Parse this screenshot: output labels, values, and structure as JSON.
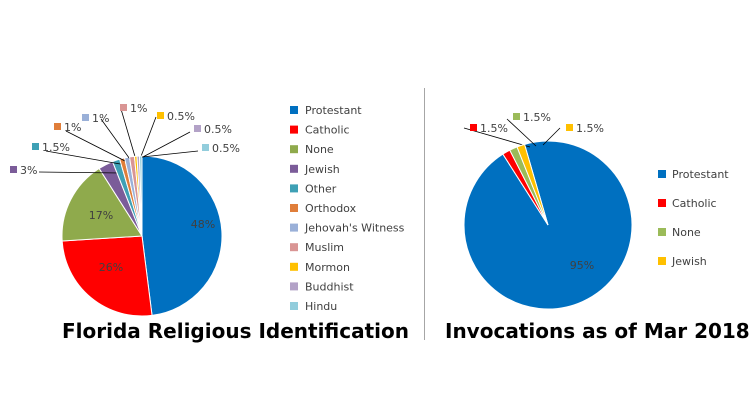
{
  "chart_data": [
    {
      "type": "pie",
      "title": "Florida Religious Identification",
      "legend_position": "right",
      "slices": [
        {
          "name": "Protestant",
          "value": 48,
          "label": "48%",
          "color": "#0070C0"
        },
        {
          "name": "Catholic",
          "value": 26,
          "label": "26%",
          "color": "#FF0000"
        },
        {
          "name": "None",
          "value": 17,
          "label": "17%",
          "color": "#8FAA4C"
        },
        {
          "name": "Jewish",
          "value": 3,
          "label": "3%",
          "color": "#7B5C99"
        },
        {
          "name": "Other",
          "value": 1.5,
          "label": "1.5%",
          "color": "#3EA0B5"
        },
        {
          "name": "Orthodox",
          "value": 1,
          "label": "1%",
          "color": "#E07E3A"
        },
        {
          "name": "Jehovah's Witness",
          "value": 1,
          "label": "1%",
          "color": "#9AB0D8"
        },
        {
          "name": "Muslim",
          "value": 1,
          "label": "1%",
          "color": "#D99594"
        },
        {
          "name": "Mormon",
          "value": 0.5,
          "label": "0.5%",
          "color": "#FFC000"
        },
        {
          "name": "Buddhist",
          "value": 0.5,
          "label": "0.5%",
          "color": "#B3A2C7"
        },
        {
          "name": "Hindu",
          "value": 0.5,
          "label": "0.5%",
          "color": "#92CDDC"
        }
      ]
    },
    {
      "type": "pie",
      "title": "Invocations as of Mar 2018",
      "legend_position": "right",
      "slices": [
        {
          "name": "Protestant",
          "value": 95,
          "label": "95%",
          "color": "#0070C0"
        },
        {
          "name": "Catholic",
          "value": 1.5,
          "label": "1.5%",
          "color": "#FF0000"
        },
        {
          "name": "None",
          "value": 1.5,
          "label": "1.5%",
          "color": "#9BBB59"
        },
        {
          "name": "Jewish",
          "value": 1.5,
          "label": "1.5%",
          "color": "#FFC000"
        }
      ]
    }
  ]
}
